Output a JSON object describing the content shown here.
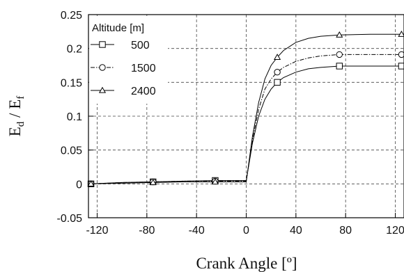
{
  "chart_data": {
    "type": "line",
    "xlabel": "Crank Angle  [º]",
    "ylabel_main": "E",
    "ylabel_sub1": "d",
    "ylabel_sep": " / E",
    "ylabel_sub2": "f",
    "xlim": [
      -127,
      127
    ],
    "ylim": [
      -0.05,
      0.25
    ],
    "xticks": [
      -120,
      -80,
      -40,
      0,
      40,
      80,
      120
    ],
    "yticks": [
      -0.05,
      0,
      0.05,
      0.1,
      0.15,
      0.2,
      0.25
    ],
    "ytick_labels": [
      "-0.05",
      "0",
      "0.05",
      "0.1",
      "0.15",
      "0.2",
      "0.25"
    ],
    "grid": true,
    "legend": {
      "title": "Altitude [m]",
      "position": "top-left"
    },
    "series": [
      {
        "name": "500",
        "marker": "square",
        "dash": "solid",
        "x": [
          -125,
          -100,
          -75,
          -50,
          -25,
          -5,
          0,
          5,
          10,
          15,
          20,
          25,
          30,
          40,
          50,
          60,
          75,
          100,
          125
        ],
        "y": [
          0.0,
          0.002,
          0.003,
          0.004,
          0.005,
          0.005,
          0.005,
          0.06,
          0.1,
          0.125,
          0.14,
          0.15,
          0.157,
          0.165,
          0.17,
          0.172,
          0.174,
          0.174,
          0.174
        ],
        "marker_x": [
          -125,
          -75,
          -25,
          25,
          75,
          125
        ],
        "marker_y": [
          0.0,
          0.003,
          0.005,
          0.15,
          0.174,
          0.174
        ]
      },
      {
        "name": "1500",
        "marker": "circle",
        "dash": "dashdot",
        "x": [
          -125,
          -100,
          -75,
          -50,
          -25,
          -5,
          0,
          5,
          10,
          15,
          20,
          25,
          30,
          40,
          50,
          60,
          75,
          100,
          125
        ],
        "y": [
          0.0,
          0.002,
          0.003,
          0.004,
          0.004,
          0.004,
          0.004,
          0.065,
          0.11,
          0.14,
          0.155,
          0.165,
          0.172,
          0.181,
          0.186,
          0.189,
          0.191,
          0.191,
          0.191
        ],
        "marker_x": [
          -125,
          -75,
          -25,
          25,
          75,
          125
        ],
        "marker_y": [
          0.0,
          0.003,
          0.004,
          0.165,
          0.191,
          0.191
        ]
      },
      {
        "name": "2400",
        "marker": "triangle",
        "dash": "solid",
        "x": [
          -125,
          -100,
          -75,
          -50,
          -25,
          -5,
          0,
          5,
          10,
          15,
          20,
          25,
          30,
          40,
          50,
          60,
          75,
          100,
          125
        ],
        "y": [
          0.0,
          0.001,
          0.002,
          0.003,
          0.003,
          0.003,
          0.003,
          0.07,
          0.12,
          0.155,
          0.175,
          0.187,
          0.197,
          0.209,
          0.215,
          0.218,
          0.22,
          0.221,
          0.221
        ],
        "marker_x": [
          -125,
          -75,
          -25,
          25,
          75,
          125
        ],
        "marker_y": [
          0.0,
          0.002,
          0.003,
          0.187,
          0.22,
          0.221
        ]
      }
    ]
  }
}
